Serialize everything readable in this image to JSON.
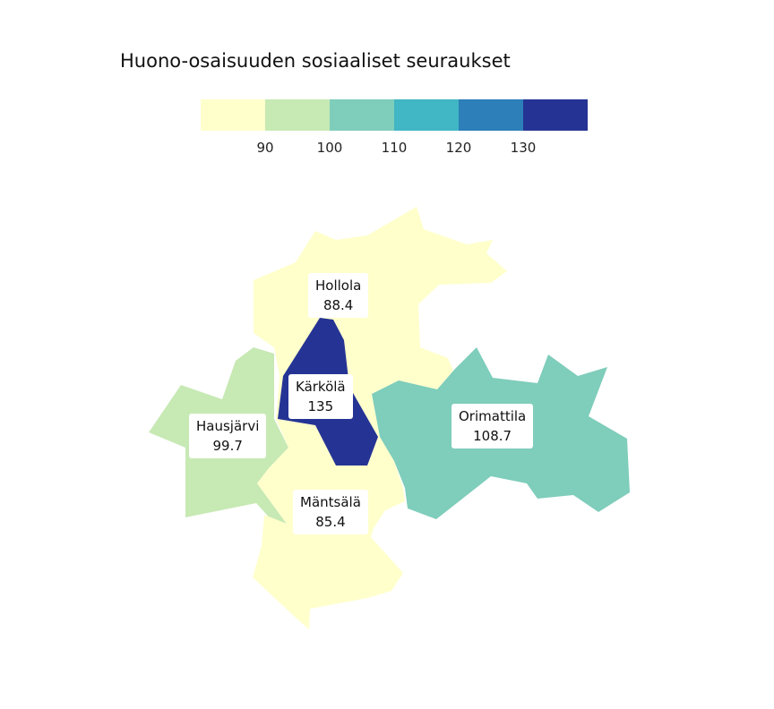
{
  "title": "Huono-osaisuuden sosiaaliset seuraukset",
  "legend": {
    "colors": [
      "#ffffcc",
      "#c7e9b4",
      "#7fcdbb",
      "#41b6c4",
      "#2c7fb8",
      "#253494"
    ],
    "ticks": [
      "90",
      "100",
      "110",
      "120",
      "130"
    ]
  },
  "regions": [
    {
      "name": "Hollola",
      "value": "88.4",
      "color": "#ffffcc"
    },
    {
      "name": "Kärkölä",
      "value": "135",
      "color": "#253494"
    },
    {
      "name": "Hausjärvi",
      "value": "99.7",
      "color": "#c7e9b4"
    },
    {
      "name": "Orimattila",
      "value": "108.7",
      "color": "#7fcdbb"
    },
    {
      "name": "Mäntsälä",
      "value": "85.4",
      "color": "#ffffcc"
    }
  ]
}
